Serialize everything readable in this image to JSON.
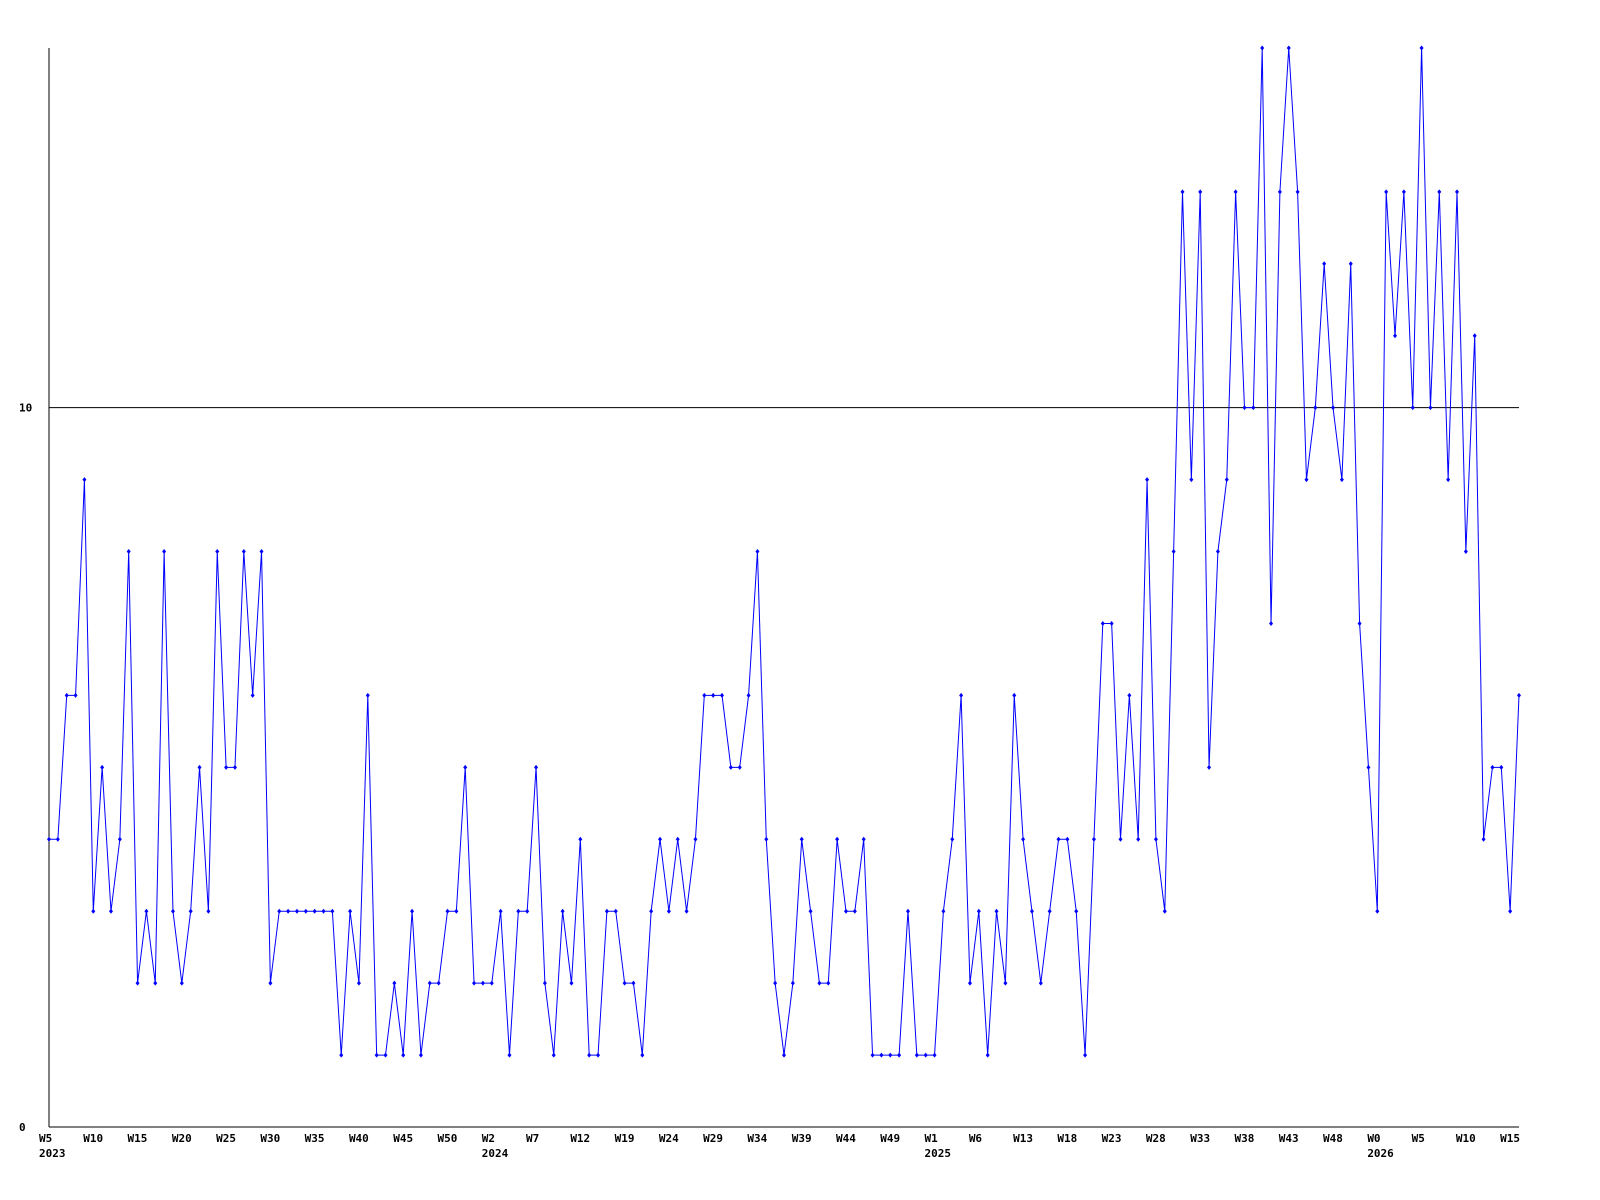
{
  "chart_data": {
    "type": "line",
    "categories": [
      "W5",
      null,
      null,
      null,
      null,
      "W10",
      null,
      null,
      null,
      null,
      "W15",
      null,
      null,
      null,
      null,
      "W20",
      null,
      null,
      null,
      null,
      "W25",
      null,
      null,
      null,
      null,
      "W30",
      null,
      null,
      null,
      null,
      "W35",
      null,
      null,
      null,
      null,
      "W40",
      null,
      null,
      null,
      null,
      "W45",
      null,
      null,
      null,
      null,
      "W50",
      null,
      null,
      null,
      null,
      "W2",
      null,
      null,
      null,
      null,
      "W7",
      null,
      null,
      null,
      null,
      "W12",
      null,
      null,
      null,
      null,
      "W19",
      null,
      null,
      null,
      null,
      "W24",
      null,
      null,
      null,
      null,
      "W29",
      null,
      null,
      null,
      null,
      "W34",
      null,
      null,
      null,
      null,
      "W39",
      null,
      null,
      null,
      null,
      "W44",
      null,
      null,
      null,
      null,
      "W49",
      null,
      null,
      null,
      null,
      "W1",
      null,
      null,
      null,
      null,
      "W6",
      null,
      null,
      null,
      null,
      "W13",
      null,
      null,
      null,
      null,
      "W18",
      null,
      null,
      null,
      null,
      "W23",
      null,
      null,
      null,
      null,
      "W28",
      null,
      null,
      null,
      null,
      "W33",
      null,
      null,
      null,
      null,
      "W38",
      null,
      null,
      null,
      null,
      "W43",
      null,
      null,
      null,
      null,
      "W48",
      null,
      null,
      null,
      null,
      "W0",
      null,
      null,
      null,
      null,
      "W5",
      null,
      null,
      null,
      null,
      "W10",
      null,
      null,
      null,
      null,
      "W15",
      null
    ],
    "years": [
      "2023",
      null,
      null,
      null,
      null,
      null,
      null,
      null,
      null,
      null,
      null,
      null,
      null,
      null,
      null,
      null,
      null,
      null,
      null,
      null,
      null,
      null,
      null,
      null,
      null,
      null,
      null,
      null,
      null,
      null,
      null,
      null,
      null,
      null,
      null,
      null,
      null,
      null,
      null,
      null,
      null,
      null,
      null,
      null,
      null,
      null,
      null,
      null,
      null,
      null,
      "2024",
      null,
      null,
      null,
      null,
      null,
      null,
      null,
      null,
      null,
      null,
      null,
      null,
      null,
      null,
      null,
      null,
      null,
      null,
      null,
      null,
      null,
      null,
      null,
      null,
      null,
      null,
      null,
      null,
      null,
      null,
      null,
      null,
      null,
      null,
      null,
      null,
      null,
      null,
      null,
      null,
      null,
      null,
      null,
      null,
      null,
      null,
      null,
      null,
      null,
      "2025",
      null,
      null,
      null,
      null,
      null,
      null,
      null,
      null,
      null,
      null,
      null,
      null,
      null,
      null,
      null,
      null,
      null,
      null,
      null,
      null,
      null,
      null,
      null,
      null,
      null,
      null,
      null,
      null,
      null,
      null,
      null,
      null,
      null,
      null,
      null,
      null,
      null,
      null,
      null,
      null,
      null,
      null,
      null,
      null,
      null,
      null,
      null,
      null,
      null,
      "2026",
      null,
      null,
      null,
      null,
      null,
      null,
      null,
      null,
      null,
      null,
      null,
      null,
      null,
      null,
      null,
      null
    ],
    "series": [
      {
        "color": "#0000ff",
        "values": [
          4,
          4,
          6,
          6,
          9,
          3,
          5,
          3,
          4,
          8,
          2,
          3,
          2,
          8,
          3,
          2,
          3,
          5,
          3,
          8,
          5,
          5,
          8,
          6,
          8,
          2,
          3,
          3,
          3,
          3,
          3,
          3,
          3,
          1,
          3,
          2,
          6,
          1,
          1,
          2,
          1,
          3,
          1,
          2,
          2,
          3,
          3,
          5,
          2,
          2,
          2,
          3,
          1,
          3,
          3,
          5,
          2,
          1,
          3,
          2,
          4,
          1,
          1,
          3,
          3,
          2,
          2,
          1,
          3,
          4,
          3,
          4,
          3,
          4,
          6,
          6,
          6,
          5,
          5,
          6,
          8,
          4,
          2,
          1,
          2,
          4,
          3,
          2,
          2,
          4,
          3,
          3,
          4,
          1,
          1,
          1,
          1,
          3,
          1,
          1,
          1,
          3,
          4,
          6,
          2,
          3,
          1,
          3,
          2,
          6,
          4,
          3,
          2,
          3,
          4,
          4,
          3,
          1,
          4,
          7,
          7,
          4,
          6,
          4,
          9,
          4,
          3,
          8,
          13,
          9,
          13,
          5,
          8,
          9,
          13,
          10,
          10,
          15,
          7,
          13,
          15,
          13,
          9,
          10,
          12,
          10,
          9,
          12,
          7,
          5,
          3,
          13,
          11,
          13,
          10,
          15,
          10,
          13,
          9,
          13,
          8,
          11,
          4,
          5,
          5,
          3,
          6
        ]
      }
    ],
    "ylim": [
      0,
      15
    ],
    "yticks": [
      0,
      10
    ]
  }
}
